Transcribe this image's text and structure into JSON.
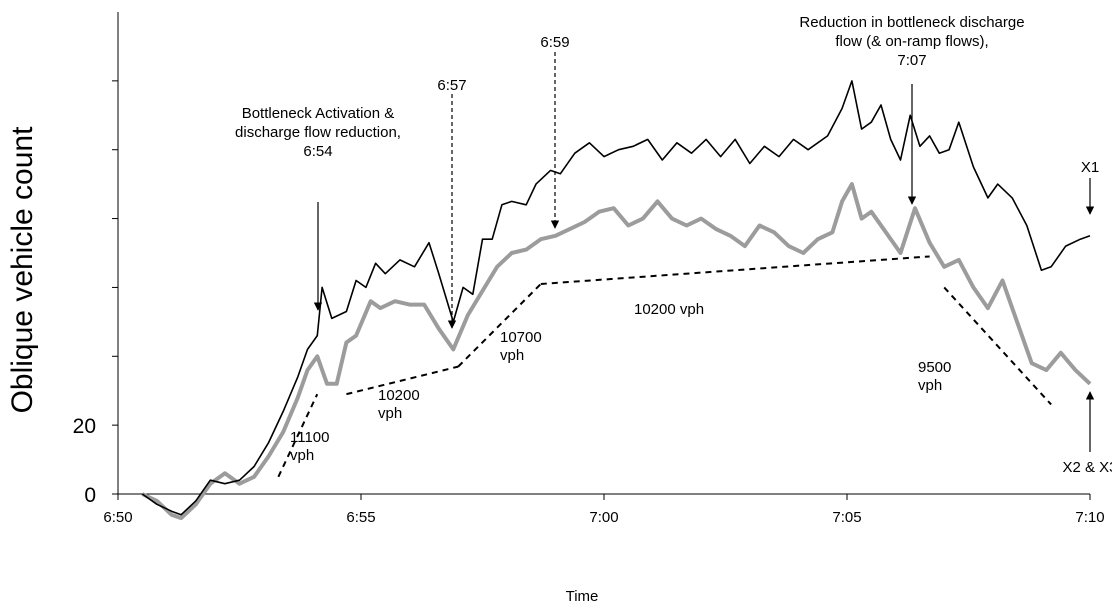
{
  "chart_data": {
    "type": "line",
    "xlabel": "Time",
    "ylabel": "Oblique vehicle count",
    "x_ticks": [
      "6:50",
      "6:55",
      "7:00",
      "7:05",
      "7:10"
    ],
    "y_ticks": [
      {
        "value": 0,
        "label": "0"
      },
      {
        "value": 20,
        "label": "20"
      },
      {
        "value": 40,
        "label": ""
      },
      {
        "value": 60,
        "label": ""
      },
      {
        "value": 80,
        "label": ""
      },
      {
        "value": 100,
        "label": ""
      },
      {
        "value": 120,
        "label": ""
      }
    ],
    "xlim_minutes_after_650": [
      0,
      20
    ],
    "ylim": [
      0,
      140
    ],
    "grid": false,
    "series": [
      {
        "name": "X1",
        "color": "#000000",
        "points": [
          [
            0.5,
            0
          ],
          [
            0.8,
            -3
          ],
          [
            1.1,
            -5
          ],
          [
            1.3,
            -6
          ],
          [
            1.6,
            -2
          ],
          [
            1.9,
            4
          ],
          [
            2.2,
            3
          ],
          [
            2.5,
            4
          ],
          [
            2.8,
            8
          ],
          [
            3.1,
            15
          ],
          [
            3.4,
            24
          ],
          [
            3.7,
            34
          ],
          [
            3.9,
            42
          ],
          [
            4.1,
            46
          ],
          [
            4.2,
            60
          ],
          [
            4.4,
            51
          ],
          [
            4.7,
            53
          ],
          [
            4.9,
            62
          ],
          [
            5.1,
            60
          ],
          [
            5.3,
            67
          ],
          [
            5.5,
            64
          ],
          [
            5.8,
            68
          ],
          [
            6.1,
            66
          ],
          [
            6.4,
            73
          ],
          [
            6.6,
            64
          ],
          [
            6.9,
            50
          ],
          [
            7.1,
            60
          ],
          [
            7.3,
            58
          ],
          [
            7.5,
            74
          ],
          [
            7.7,
            74
          ],
          [
            7.9,
            84
          ],
          [
            8.1,
            85
          ],
          [
            8.4,
            84
          ],
          [
            8.6,
            90
          ],
          [
            8.9,
            94
          ],
          [
            9.1,
            93
          ],
          [
            9.4,
            99
          ],
          [
            9.7,
            102
          ],
          [
            10.0,
            98
          ],
          [
            10.3,
            100
          ],
          [
            10.6,
            101
          ],
          [
            10.9,
            103
          ],
          [
            11.2,
            97
          ],
          [
            11.5,
            102
          ],
          [
            11.8,
            99
          ],
          [
            12.1,
            103
          ],
          [
            12.4,
            98
          ],
          [
            12.7,
            103
          ],
          [
            13.0,
            96
          ],
          [
            13.3,
            101
          ],
          [
            13.6,
            98
          ],
          [
            13.9,
            103
          ],
          [
            14.2,
            100
          ],
          [
            14.6,
            104
          ],
          [
            14.9,
            112
          ],
          [
            15.1,
            120
          ],
          [
            15.3,
            106
          ],
          [
            15.5,
            108
          ],
          [
            15.7,
            113
          ],
          [
            15.9,
            103
          ],
          [
            16.1,
            97
          ],
          [
            16.3,
            110
          ],
          [
            16.5,
            101
          ],
          [
            16.7,
            104
          ],
          [
            16.9,
            99
          ],
          [
            17.1,
            100
          ],
          [
            17.3,
            108
          ],
          [
            17.6,
            95
          ],
          [
            17.9,
            86
          ],
          [
            18.1,
            90
          ],
          [
            18.4,
            86
          ],
          [
            18.7,
            78
          ],
          [
            19.0,
            65
          ],
          [
            19.2,
            66
          ],
          [
            19.5,
            72
          ],
          [
            19.8,
            74
          ],
          [
            20.0,
            75
          ]
        ]
      },
      {
        "name": "X2 & X3",
        "color": "#9c9c9c",
        "points": [
          [
            0.5,
            0
          ],
          [
            0.8,
            -2
          ],
          [
            1.1,
            -6
          ],
          [
            1.3,
            -7
          ],
          [
            1.6,
            -3
          ],
          [
            1.9,
            3
          ],
          [
            2.2,
            6
          ],
          [
            2.5,
            3
          ],
          [
            2.8,
            5
          ],
          [
            3.1,
            11
          ],
          [
            3.4,
            18
          ],
          [
            3.7,
            28
          ],
          [
            3.9,
            36
          ],
          [
            4.1,
            40
          ],
          [
            4.3,
            32
          ],
          [
            4.5,
            32
          ],
          [
            4.7,
            44
          ],
          [
            4.9,
            46
          ],
          [
            5.2,
            56
          ],
          [
            5.4,
            54
          ],
          [
            5.7,
            56
          ],
          [
            6.0,
            55
          ],
          [
            6.3,
            55
          ],
          [
            6.6,
            48
          ],
          [
            6.9,
            42
          ],
          [
            7.2,
            52
          ],
          [
            7.5,
            59
          ],
          [
            7.8,
            66
          ],
          [
            8.1,
            70
          ],
          [
            8.4,
            71
          ],
          [
            8.7,
            74
          ],
          [
            9.0,
            75
          ],
          [
            9.3,
            77
          ],
          [
            9.6,
            79
          ],
          [
            9.9,
            82
          ],
          [
            10.2,
            83
          ],
          [
            10.5,
            78
          ],
          [
            10.8,
            80
          ],
          [
            11.1,
            85
          ],
          [
            11.4,
            80
          ],
          [
            11.7,
            78
          ],
          [
            12.0,
            80
          ],
          [
            12.3,
            77
          ],
          [
            12.6,
            75
          ],
          [
            12.9,
            72
          ],
          [
            13.2,
            78
          ],
          [
            13.5,
            76
          ],
          [
            13.8,
            72
          ],
          [
            14.1,
            70
          ],
          [
            14.4,
            74
          ],
          [
            14.7,
            76
          ],
          [
            14.9,
            85
          ],
          [
            15.1,
            90
          ],
          [
            15.3,
            80
          ],
          [
            15.5,
            82
          ],
          [
            15.8,
            76
          ],
          [
            16.1,
            70
          ],
          [
            16.4,
            83
          ],
          [
            16.7,
            73
          ],
          [
            17.0,
            66
          ],
          [
            17.3,
            68
          ],
          [
            17.6,
            60
          ],
          [
            17.9,
            54
          ],
          [
            18.2,
            62
          ],
          [
            18.5,
            50
          ],
          [
            18.8,
            38
          ],
          [
            19.1,
            36
          ],
          [
            19.4,
            41
          ],
          [
            19.7,
            36
          ],
          [
            20.0,
            32
          ]
        ]
      }
    ],
    "rate_lines": [
      {
        "points": [
          [
            3.3,
            5
          ],
          [
            4.1,
            29
          ]
        ],
        "label_lines": [
          "11100",
          "vph"
        ]
      },
      {
        "points": [
          [
            4.7,
            29
          ],
          [
            7.0,
            37
          ]
        ],
        "label_lines": [
          "10200",
          "vph"
        ]
      },
      {
        "points": [
          [
            7.0,
            37
          ],
          [
            8.7,
            61
          ]
        ],
        "label_lines": [
          "10700",
          "vph"
        ]
      },
      {
        "points": [
          [
            8.7,
            61
          ],
          [
            16.7,
            69
          ]
        ],
        "label_lines": [
          "10200 vph"
        ]
      },
      {
        "points": [
          [
            17.0,
            60
          ],
          [
            19.2,
            26
          ]
        ],
        "label_lines": [
          "9500",
          "vph"
        ]
      }
    ],
    "annotations": [
      {
        "lines": [
          "Bottleneck Activation &",
          "discharge flow reduction,",
          "6:54"
        ],
        "time": "6:54",
        "style": "solid"
      },
      {
        "lines": [
          "6:57"
        ],
        "time": "6:57",
        "style": "dashed"
      },
      {
        "lines": [
          "6:59"
        ],
        "time": "6:59",
        "style": "dashed"
      },
      {
        "lines": [
          "Reduction in bottleneck discharge",
          "flow (& on-ramp flows),",
          "7:07"
        ],
        "time": "7:07",
        "style": "solid"
      },
      {
        "lines": [
          "X1"
        ],
        "series": "X1",
        "style": "solid"
      },
      {
        "lines": [
          "X2 & X3"
        ],
        "series": "X2 & X3",
        "style": "solid"
      }
    ]
  }
}
